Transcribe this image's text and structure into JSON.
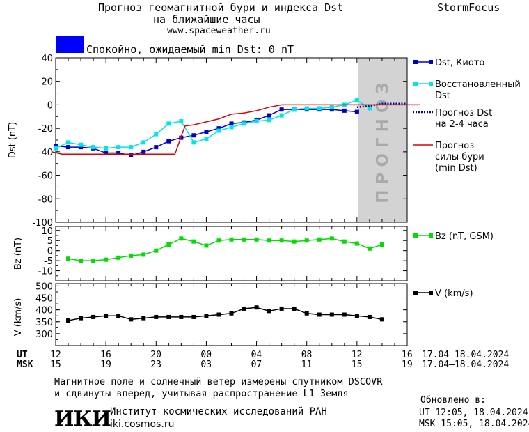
{
  "header": {
    "title_line1": "Прогноз геомагнитной бури и индекса Dst",
    "title_line2": "на ближайшие часы",
    "site": "www.spaceweather.ru",
    "brand": "StormFocus",
    "status_text": "Спокойно, ожидаемый min Dst: 0 nT",
    "status_color": "#0000ff"
  },
  "forecast_watermark": "ПРОГНОЗ",
  "chart_data": [
    {
      "type": "line",
      "panel": "dst",
      "ylabel": "Dst (nT)",
      "ylim": [
        -100,
        40
      ],
      "yticks": [
        40,
        20,
        0,
        -20,
        -40,
        -60,
        -80,
        -100
      ],
      "grid": false,
      "legend_position": "right",
      "x_unit": "hours UT from 17.04 12:00",
      "series": [
        {
          "name": "Dst, Киото",
          "color": "#0000cc",
          "marker": "square",
          "x": [
            0,
            1,
            2,
            3,
            4,
            5,
            6,
            7,
            8,
            9,
            10,
            11,
            12,
            13,
            14,
            15,
            16,
            17,
            18,
            19,
            20,
            21,
            22,
            23,
            24
          ],
          "y": [
            -35,
            -36,
            -36,
            -37,
            -41,
            -41,
            -43,
            -40,
            -36,
            -31,
            -28,
            -26,
            -23,
            -20,
            -16,
            -15,
            -13,
            -9,
            -4,
            -4,
            -4,
            -4,
            -4,
            -5,
            -6
          ]
        },
        {
          "name": "Восстановленный Dst",
          "color": "#00e6e6",
          "marker": "square",
          "x": [
            0,
            1,
            2,
            3,
            4,
            5,
            6,
            7,
            8,
            9,
            10,
            11,
            12,
            13,
            14,
            15,
            16,
            17,
            18,
            19,
            20,
            21,
            22,
            23,
            24,
            25
          ],
          "y": [
            -37,
            -32,
            -34,
            -36,
            -37,
            -36,
            -36,
            -32,
            -25,
            -16,
            -14,
            -32,
            -29,
            -22,
            -19,
            -16,
            -14,
            -13,
            -9,
            -4,
            -3,
            -3,
            -2,
            0,
            4,
            -3
          ]
        },
        {
          "name": "Прогноз Dst на 2-4 часа",
          "color": "#000099",
          "style": "dotted",
          "x": [
            24,
            25,
            26,
            27,
            28
          ],
          "y": [
            -2,
            -1,
            1,
            1,
            1
          ]
        },
        {
          "name": "Прогноз силы бури (min Dst)",
          "color": "#e00000",
          "style": "step",
          "x": [
            -0.3,
            0.5,
            9.5,
            10.3,
            11,
            13,
            14,
            15,
            16,
            17,
            18,
            19,
            20,
            21,
            22,
            23,
            24,
            25,
            26,
            27,
            28,
            29
          ],
          "y": [
            -40,
            -42,
            -42,
            -18,
            -17,
            -12,
            -8,
            -7,
            -5,
            -2,
            0,
            0,
            0,
            0,
            0,
            0,
            0,
            0,
            0,
            0,
            0,
            0
          ]
        }
      ]
    },
    {
      "type": "line",
      "panel": "bz",
      "ylabel": "Bz (nT)",
      "ylim": [
        -15,
        12
      ],
      "yticks": [
        10,
        5,
        0,
        -5,
        -10
      ],
      "grid": false,
      "series": [
        {
          "name": "Bz (nT, GSM)",
          "color": "#00dd00",
          "marker": "square",
          "x": [
            1,
            2,
            3,
            4,
            5,
            6,
            7,
            8,
            9,
            10,
            11,
            12,
            13,
            14,
            15,
            16,
            17,
            18,
            19,
            20,
            21,
            22,
            23,
            24,
            25,
            26
          ],
          "y": [
            -4,
            -5,
            -5,
            -4.5,
            -3.5,
            -2.5,
            -2,
            0,
            3,
            6,
            4.5,
            2.5,
            5,
            5.5,
            5.5,
            5.5,
            5,
            5,
            4.5,
            5,
            5.5,
            6,
            4.5,
            3.5,
            1,
            3
          ]
        }
      ]
    },
    {
      "type": "line",
      "panel": "v",
      "ylabel": "V (km/s)",
      "ylim": [
        250,
        510
      ],
      "yticks": [
        500,
        450,
        400,
        350,
        300
      ],
      "grid": false,
      "series": [
        {
          "name": "V (km/s)",
          "color": "#000000",
          "marker": "square",
          "x": [
            1,
            2,
            3,
            4,
            5,
            6,
            7,
            8,
            9,
            10,
            11,
            12,
            13,
            14,
            15,
            16,
            17,
            18,
            19,
            20,
            21,
            22,
            23,
            24,
            25,
            26
          ],
          "y": [
            355,
            365,
            370,
            375,
            375,
            360,
            365,
            370,
            370,
            370,
            370,
            375,
            380,
            385,
            405,
            410,
            395,
            405,
            405,
            385,
            380,
            380,
            380,
            375,
            370,
            360
          ]
        }
      ]
    }
  ],
  "axis": {
    "ut_label": "UT",
    "msk_label": "MSK",
    "ut_ticks": [
      "12",
      "16",
      "20",
      "00",
      "04",
      "08",
      "12",
      "16"
    ],
    "msk_ticks": [
      "15",
      "19",
      "23",
      "03",
      "07",
      "11",
      "15",
      "19"
    ],
    "date_range_ut": "17.04–18.04.2024",
    "date_range_msk": "17.04–18.04.2024"
  },
  "footer": {
    "note_line1": "Магнитное поле и солнечный ветер измерены спутником DSCOVR",
    "note_line2": "и сдвинуты вперед, учитывая распространение L1–Земля",
    "org_logo": "ИКИ",
    "org_name": "Институт космических исследований РАН",
    "org_site": "iki.cosmos.ru",
    "updated_label": "Обновлено в:",
    "updated_ut": "UT   12:05, 18.04.2024",
    "updated_msk": "MSK 15:05, 18.04.2024"
  }
}
